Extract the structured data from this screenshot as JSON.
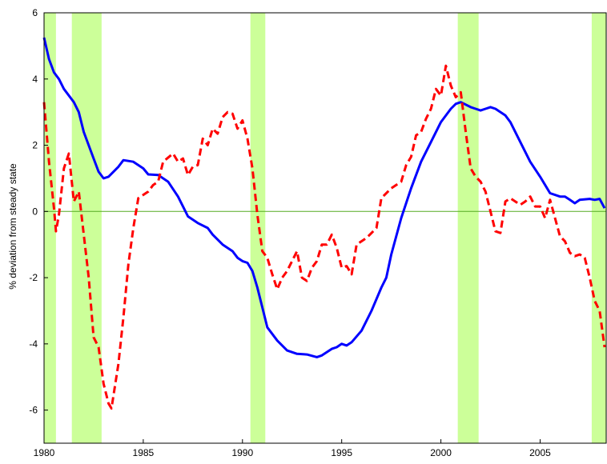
{
  "chart_data": {
    "type": "line",
    "ylabel": "% deviation from steady state",
    "xlim": [
      1980,
      2008.33
    ],
    "ylim": [
      -7,
      6
    ],
    "xticks": [
      1980,
      1985,
      1990,
      1995,
      2000,
      2005
    ],
    "yticks": [
      -6,
      -4,
      -2,
      0,
      2,
      4,
      6
    ],
    "zero_line_color": "#55aa22",
    "shade_color": "#ccff99",
    "shaded_regions": [
      [
        1980,
        1980.6
      ],
      [
        1981.4,
        1982.9
      ],
      [
        1990.4,
        1991.15
      ],
      [
        2000.85,
        2001.9
      ],
      [
        2007.6,
        2008.33
      ]
    ],
    "series": [
      {
        "color": "#0000ff",
        "dash": false,
        "x": [
          1980,
          1980.25,
          1980.5,
          1980.75,
          1981,
          1981.5,
          1981.75,
          1982,
          1982.5,
          1982.75,
          1983,
          1983.25,
          1983.75,
          1984,
          1984.5,
          1985,
          1985.25,
          1985.75,
          1986.25,
          1986.75,
          1987,
          1987.25,
          1987.75,
          1988.25,
          1988.5,
          1989,
          1989.5,
          1989.75,
          1990,
          1990.25,
          1990.5,
          1990.75,
          1991,
          1991.25,
          1991.75,
          1992.25,
          1992.75,
          1993.25,
          1993.75,
          1994,
          1994.5,
          1994.75,
          1995,
          1995.25,
          1995.5,
          1996,
          1996.5,
          1997,
          1997.25,
          1997.5,
          1998,
          1998.5,
          1999,
          1999.5,
          2000,
          2000.5,
          2000.75,
          2001,
          2001.5,
          2001.75,
          2002,
          2002.25,
          2002.5,
          2002.75,
          2003.25,
          2003.5,
          2004,
          2004.5,
          2005,
          2005.25,
          2005.5,
          2006,
          2006.25,
          2006.5,
          2006.75,
          2007,
          2007.5,
          2007.75,
          2008,
          2008.25
        ],
        "values": [
          5.25,
          4.6,
          4.2,
          4.0,
          3.7,
          3.3,
          3.0,
          2.4,
          1.6,
          1.2,
          1.0,
          1.05,
          1.35,
          1.55,
          1.5,
          1.3,
          1.12,
          1.1,
          0.9,
          0.45,
          0.15,
          -0.15,
          -0.35,
          -0.5,
          -0.7,
          -1.0,
          -1.2,
          -1.4,
          -1.5,
          -1.55,
          -1.8,
          -2.3,
          -2.9,
          -3.5,
          -3.9,
          -4.2,
          -4.3,
          -4.32,
          -4.4,
          -4.35,
          -4.15,
          -4.1,
          -4.0,
          -4.05,
          -3.95,
          -3.6,
          -3.0,
          -2.3,
          -2.0,
          -1.3,
          -0.2,
          0.7,
          1.5,
          2.1,
          2.7,
          3.1,
          3.25,
          3.3,
          3.15,
          3.1,
          3.05,
          3.1,
          3.15,
          3.1,
          2.9,
          2.7,
          2.1,
          1.5,
          1.05,
          0.8,
          0.55,
          0.45,
          0.45,
          0.35,
          0.25,
          0.35,
          0.38,
          0.35,
          0.38,
          0.1
        ]
      },
      {
        "color": "#ff0000",
        "dash": true,
        "x": [
          1980,
          1980.25,
          1980.5,
          1980.6,
          1980.75,
          1981,
          1981.25,
          1981.5,
          1981.75,
          1982,
          1982.25,
          1982.5,
          1982.75,
          1983,
          1983.25,
          1983.4,
          1983.75,
          1984,
          1984.25,
          1984.5,
          1984.75,
          1985.25,
          1985.5,
          1985.75,
          1986,
          1986.5,
          1986.75,
          1987,
          1987.25,
          1987.5,
          1987.75,
          1988,
          1988.25,
          1988.5,
          1988.75,
          1989,
          1989.25,
          1989.5,
          1989.75,
          1990,
          1990.25,
          1990.5,
          1990.75,
          1991,
          1991.25,
          1991.5,
          1991.75,
          1992,
          1992.25,
          1992.5,
          1992.75,
          1993,
          1993.25,
          1993.5,
          1993.75,
          1994,
          1994.25,
          1994.5,
          1994.75,
          1995,
          1995.25,
          1995.5,
          1995.75,
          1996.25,
          1996.75,
          1997,
          1997.5,
          1998,
          1998.25,
          1998.5,
          1998.75,
          1999,
          1999.25,
          1999.5,
          1999.75,
          2000,
          2000.25,
          2000.5,
          2000.75,
          2001,
          2001.25,
          2001.5,
          2001.75,
          2002,
          2002.25,
          2002.5,
          2002.75,
          2003,
          2003.25,
          2003.5,
          2003.75,
          2004,
          2004.25,
          2004.5,
          2004.75,
          2005,
          2005.25,
          2005.5,
          2005.75,
          2006,
          2006.25,
          2006.5,
          2006.75,
          2007,
          2007.25,
          2007.5,
          2007.75,
          2008,
          2008.25
        ],
        "values": [
          3.3,
          1.5,
          0.1,
          -0.6,
          -0.1,
          1.3,
          1.75,
          0.3,
          0.6,
          -0.7,
          -2.0,
          -3.8,
          -4.1,
          -5.2,
          -5.8,
          -5.95,
          -4.6,
          -3.2,
          -1.6,
          -0.5,
          0.4,
          0.6,
          0.8,
          0.9,
          1.5,
          1.75,
          1.5,
          1.6,
          1.1,
          1.35,
          1.4,
          2.2,
          2.0,
          2.5,
          2.35,
          2.85,
          3.0,
          2.95,
          2.5,
          2.75,
          2.2,
          1.3,
          -0.1,
          -1.2,
          -1.4,
          -1.9,
          -2.35,
          -2.0,
          -1.8,
          -1.5,
          -1.2,
          -2.0,
          -2.1,
          -1.7,
          -1.5,
          -1.0,
          -1.0,
          -0.7,
          -1.1,
          -1.7,
          -1.65,
          -1.9,
          -1.0,
          -0.8,
          -0.5,
          0.4,
          0.7,
          0.9,
          1.4,
          1.65,
          2.3,
          2.4,
          2.8,
          3.1,
          3.7,
          3.5,
          4.4,
          3.8,
          3.45,
          3.6,
          2.4,
          1.3,
          1.05,
          0.9,
          0.6,
          0.0,
          -0.6,
          -0.65,
          0.3,
          0.4,
          0.3,
          0.2,
          0.3,
          0.45,
          0.15,
          0.15,
          -0.2,
          0.35,
          -0.2,
          -0.75,
          -0.9,
          -1.25,
          -1.35,
          -1.3,
          -1.4,
          -2.0,
          -2.7,
          -3.0,
          -4.1
        ]
      }
    ]
  }
}
